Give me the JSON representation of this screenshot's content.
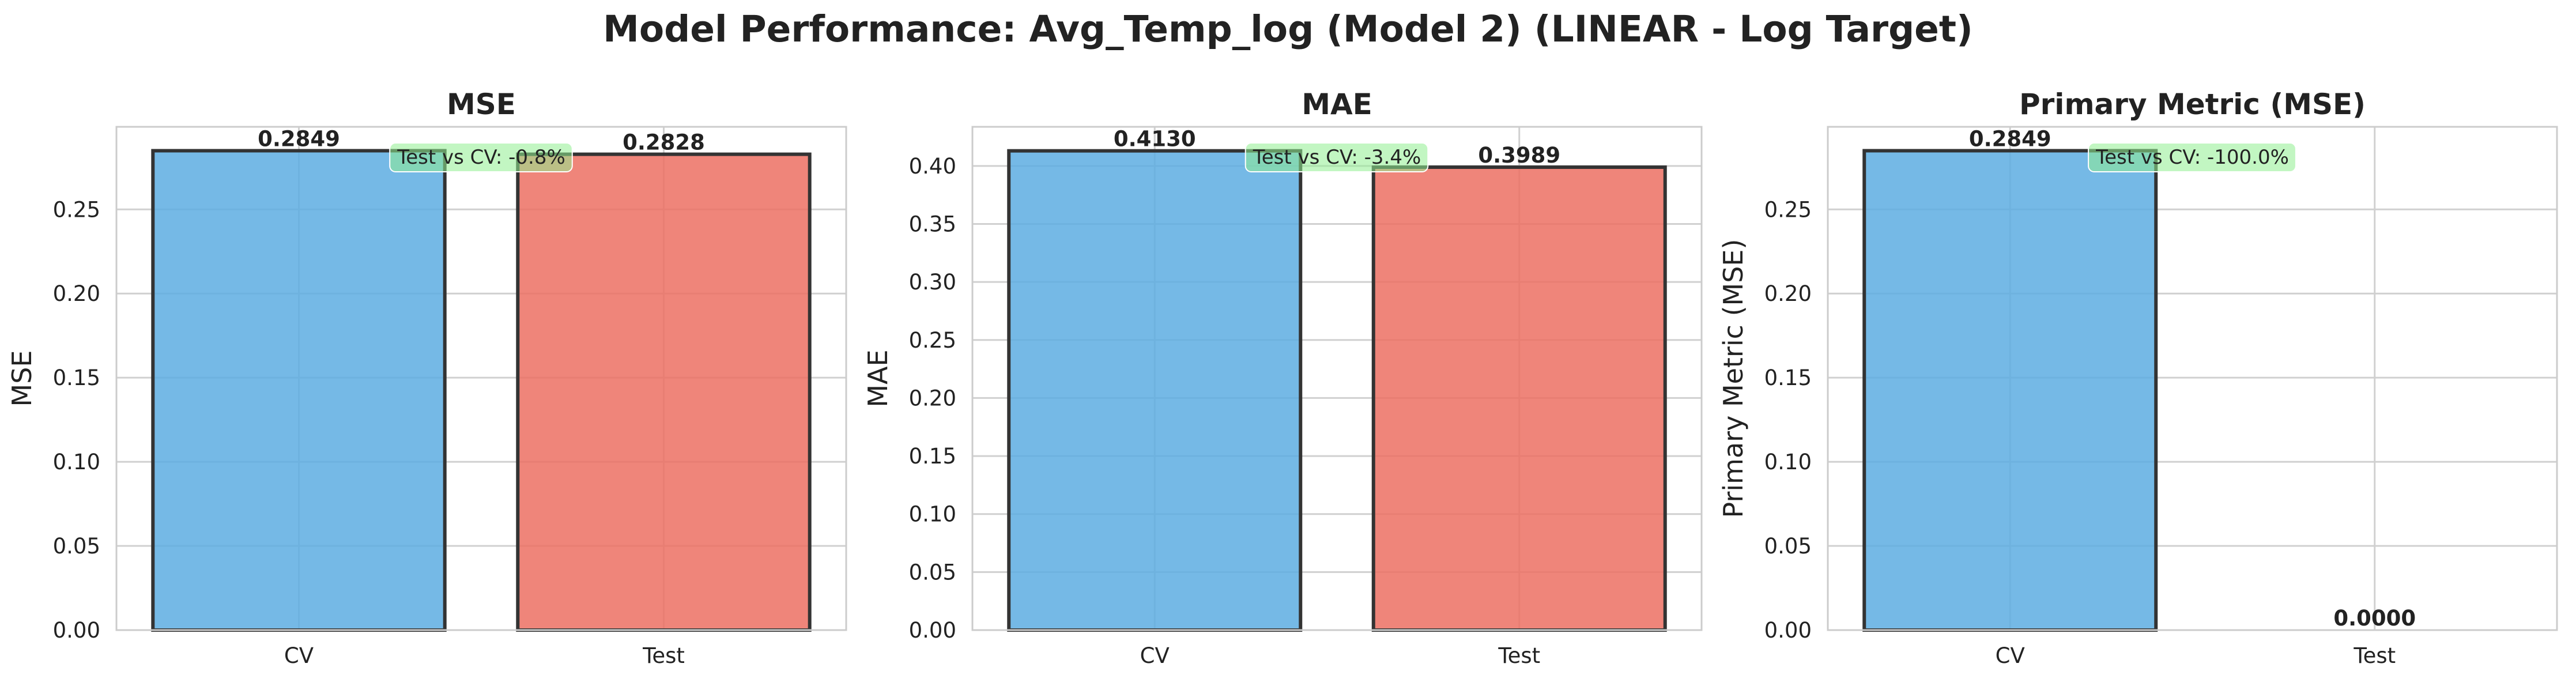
{
  "title": "Model Performance: Avg_Temp_log (Model 2) (LINEAR - Log Target)",
  "colors": {
    "cv": "#5DADE2",
    "test": "#EC7063",
    "annotation_bg": "#90EE90",
    "edge": "#333333",
    "grid": "#D0D0D0"
  },
  "chart_data": [
    {
      "type": "bar",
      "title": "MSE",
      "ylabel": "MSE",
      "categories": [
        "CV",
        "Test"
      ],
      "values": [
        0.2849,
        0.2828
      ],
      "value_labels": [
        "0.2849",
        "0.2828"
      ],
      "ylim": [
        0,
        0.2991
      ],
      "yticks": [
        0.0,
        0.05,
        0.1,
        0.15,
        0.2,
        0.25
      ],
      "ytick_labels": [
        "0.00",
        "0.05",
        "0.10",
        "0.15",
        "0.20",
        "0.25"
      ],
      "annotation": "Test vs CV: -0.8%",
      "grid": true
    },
    {
      "type": "bar",
      "title": "MAE",
      "ylabel": "MAE",
      "categories": [
        "CV",
        "Test"
      ],
      "values": [
        0.413,
        0.3989
      ],
      "value_labels": [
        "0.4130",
        "0.3989"
      ],
      "ylim": [
        0,
        0.4337
      ],
      "yticks": [
        0.0,
        0.05,
        0.1,
        0.15,
        0.2,
        0.25,
        0.3,
        0.35,
        0.4
      ],
      "ytick_labels": [
        "0.00",
        "0.05",
        "0.10",
        "0.15",
        "0.20",
        "0.25",
        "0.30",
        "0.35",
        "0.40"
      ],
      "annotation": "Test vs CV: -3.4%",
      "grid": true
    },
    {
      "type": "bar",
      "title": "Primary Metric (MSE)",
      "ylabel": "Primary Metric (MSE)",
      "categories": [
        "CV",
        "Test"
      ],
      "values": [
        0.2849,
        0.0
      ],
      "value_labels": [
        "0.2849",
        "0.0000"
      ],
      "ylim": [
        0,
        0.2991
      ],
      "yticks": [
        0.0,
        0.05,
        0.1,
        0.15,
        0.2,
        0.25
      ],
      "ytick_labels": [
        "0.00",
        "0.05",
        "0.10",
        "0.15",
        "0.20",
        "0.25"
      ],
      "annotation": "Test vs CV: -100.0%",
      "grid": true
    }
  ]
}
